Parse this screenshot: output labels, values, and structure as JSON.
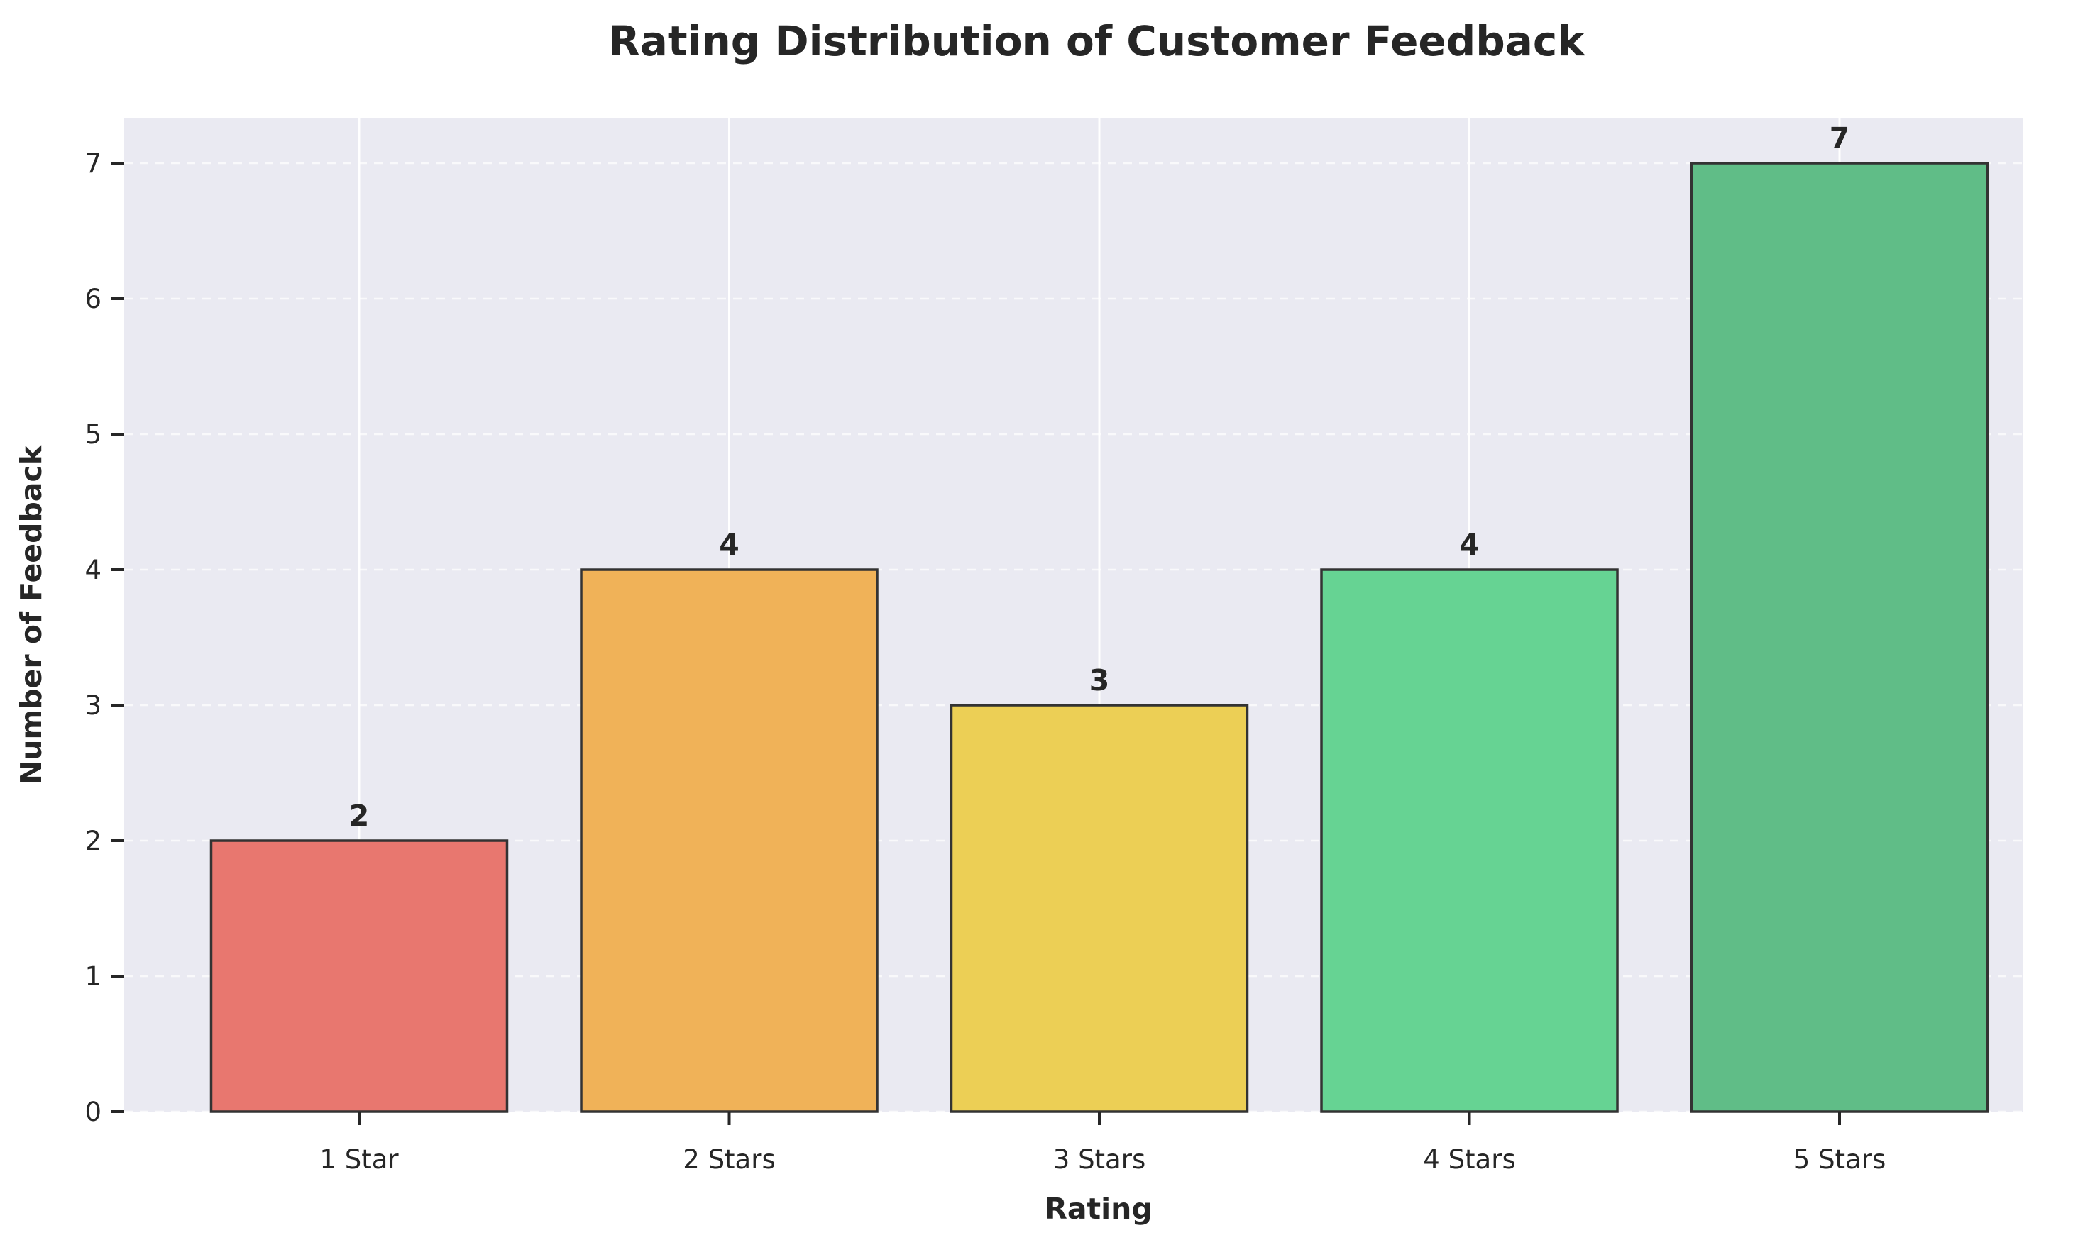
{
  "chart_data": {
    "type": "bar",
    "title": "Rating Distribution of Customer Feedback",
    "xlabel": "Rating",
    "ylabel": "Number of Feedback",
    "categories": [
      "1 Star",
      "2 Stars",
      "3 Stars",
      "4 Stars",
      "5 Stars"
    ],
    "values": [
      2,
      4,
      3,
      4,
      7
    ],
    "data_labels": [
      "2",
      "4",
      "3",
      "4",
      "7"
    ],
    "colors": [
      "#e8776f",
      "#f0b258",
      "#eccf55",
      "#66d393",
      "#60bd87"
    ],
    "ylim": [
      0,
      7.33
    ],
    "yticks": [
      0,
      1,
      2,
      3,
      4,
      5,
      6,
      7
    ],
    "ytick_labels": [
      "0",
      "1",
      "2",
      "3",
      "4",
      "5",
      "6",
      "7"
    ],
    "grid": true,
    "background_color": "#eaeaf2",
    "bar_edge_color": "#333333"
  }
}
